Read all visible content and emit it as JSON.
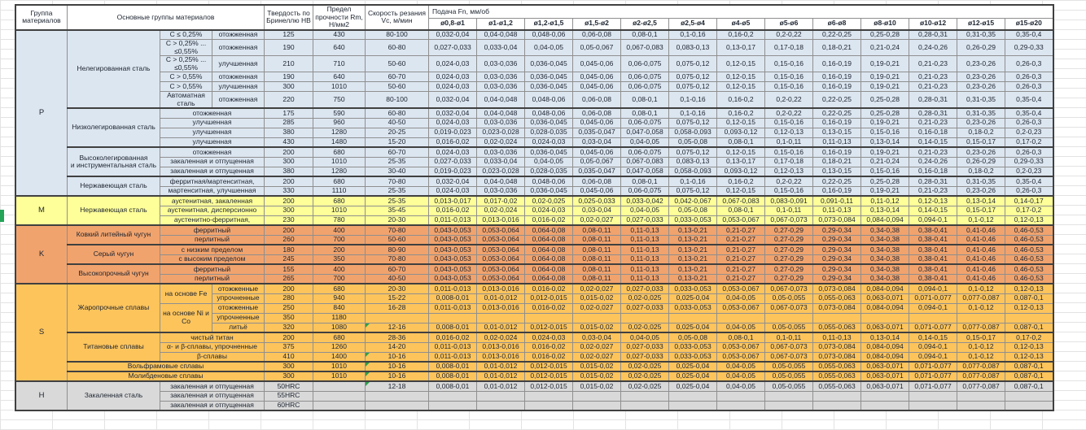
{
  "header": {
    "col_group": "Группа материалов",
    "col_materials": "Основные группы материалов",
    "col_hardness": "Твердость по Бринеллю НВ",
    "col_strength": "Предел прочности Rm, Н/мм2",
    "col_speed": "Скорость резания Vc, м/мин",
    "col_feed": "Подача Fn, мм/об",
    "feed_cols": [
      "ø0,8-ø1",
      "ø1-ø1,2",
      "ø1,2-ø1,5",
      "ø1,5-ø2",
      "ø2-ø2,5",
      "ø2,5-ø4",
      "ø4-ø5",
      "ø5-ø6",
      "ø6-ø8",
      "ø8-ø10",
      "ø10-ø12",
      "ø12-ø15",
      "ø15-ø20"
    ]
  },
  "colors": {
    "group_P": "#dce6f1",
    "group_M": "#ffff99",
    "group_K": "#f1a36d",
    "group_S": "#fdc45c",
    "group_H": "#d9d9d9",
    "flag_green": "#2e9e4f",
    "margin_marker_green": "#23a457"
  },
  "rows": [
    {
      "g": "P",
      "grp": "P",
      "grp_rows": 15,
      "mat": "Нелегированная сталь",
      "mat_rows": 6,
      "s1": "C ≤ 0,25%",
      "s2": "отожженная",
      "hb": "125",
      "rm": "430",
      "vc": "80-100",
      "f": [
        "0,032-0,04",
        "0,04-0,048",
        "0,048-0,06",
        "0,06-0,08",
        "0,08-0,1",
        "0,1-0,16",
        "0,16-0,2",
        "0,2-0,22",
        "0,22-0,25",
        "0,25-0,28",
        "0,28-0,31",
        "0,31-0,35",
        "0,35-0,4"
      ]
    },
    {
      "g": "P",
      "s1": "C > 0,25% ...\n≤0,55%",
      "s2": "отожженная",
      "hb": "190",
      "rm": "640",
      "vc": "60-80",
      "f": [
        "0,027-0,033",
        "0,033-0,04",
        "0,04-0,05",
        "0,05-0,067",
        "0,067-0,083",
        "0,083-0,13",
        "0,13-0,17",
        "0,17-0,18",
        "0,18-0,21",
        "0,21-0,24",
        "0,24-0,26",
        "0,26-0,29",
        "0,29-0,33"
      ]
    },
    {
      "g": "P",
      "s1": "C > 0,25% ...\n≤0,55%",
      "s2": "улучшенная",
      "hb": "210",
      "rm": "710",
      "vc": "50-60",
      "f": [
        "0,024-0,03",
        "0,03-0,036",
        "0,036-0,045",
        "0,045-0,06",
        "0,06-0,075",
        "0,075-0,12",
        "0,12-0,15",
        "0,15-0,16",
        "0,16-0,19",
        "0,19-0,21",
        "0,21-0,23",
        "0,23-0,26",
        "0,26-0,3"
      ]
    },
    {
      "g": "P",
      "s1": "C > 0,55%",
      "s2": "отожженная",
      "hb": "190",
      "rm": "640",
      "vc": "60-70",
      "f": [
        "0,024-0,03",
        "0,03-0,036",
        "0,036-0,045",
        "0,045-0,06",
        "0,06-0,075",
        "0,075-0,12",
        "0,12-0,15",
        "0,15-0,16",
        "0,16-0,19",
        "0,19-0,21",
        "0,21-0,23",
        "0,23-0,26",
        "0,26-0,3"
      ]
    },
    {
      "g": "P",
      "s1": "C > 0,55%",
      "s2": "улучшенная",
      "hb": "300",
      "rm": "1010",
      "vc": "50-60",
      "f": [
        "0,024-0,03",
        "0,03-0,036",
        "0,036-0,045",
        "0,045-0,06",
        "0,06-0,075",
        "0,075-0,12",
        "0,12-0,15",
        "0,15-0,16",
        "0,16-0,19",
        "0,19-0,21",
        "0,21-0,23",
        "0,23-0,26",
        "0,26-0,3"
      ]
    },
    {
      "g": "P",
      "s1": "Автоматная сталь",
      "s2": "отожженная",
      "hb": "220",
      "rm": "750",
      "vc": "80-100",
      "f": [
        "0,032-0,04",
        "0,04-0,048",
        "0,048-0,06",
        "0,06-0,08",
        "0,08-0,1",
        "0,1-0,16",
        "0,16-0,2",
        "0,2-0,22",
        "0,22-0,25",
        "0,25-0,28",
        "0,28-0,31",
        "0,31-0,35",
        "0,35-0,4"
      ]
    },
    {
      "g": "P",
      "mat": "Низколегированная сталь",
      "mat_rows": 4,
      "s1": "отожженная",
      "s1_cols": 2,
      "hb": "175",
      "rm": "590",
      "vc": "60-80",
      "f": [
        "0,032-0,04",
        "0,04-0,048",
        "0,048-0,06",
        "0,06-0,08",
        "0,08-0,1",
        "0,1-0,16",
        "0,16-0,2",
        "0,2-0,22",
        "0,22-0,25",
        "0,25-0,28",
        "0,28-0,31",
        "0,31-0,35",
        "0,35-0,4"
      ]
    },
    {
      "g": "P",
      "s1": "улучшенная",
      "s1_cols": 2,
      "hb": "285",
      "rm": "960",
      "vc": "40-50",
      "f": [
        "0,024-0,03",
        "0,03-0,036",
        "0,036-0,045",
        "0,045-0,06",
        "0,06-0,075",
        "0,075-0,12",
        "0,12-0,15",
        "0,15-0,16",
        "0,16-0,19",
        "0,19-0,21",
        "0,21-0,23",
        "0,23-0,26",
        "0,26-0,3"
      ]
    },
    {
      "g": "P",
      "s1": "улучшенная",
      "s1_cols": 2,
      "hb": "380",
      "rm": "1280",
      "vc": "20-25",
      "f": [
        "0,019-0,023",
        "0,023-0,028",
        "0,028-0,035",
        "0,035-0,047",
        "0,047-0,058",
        "0,058-0,093",
        "0,093-0,12",
        "0,12-0,13",
        "0,13-0,15",
        "0,15-0,16",
        "0,16-0,18",
        "0,18-0,2",
        "0,2-0,23"
      ]
    },
    {
      "g": "P",
      "s1": "улучшенная",
      "s1_cols": 2,
      "hb": "430",
      "rm": "1480",
      "vc": "15-20",
      "f": [
        "0,016-0,02",
        "0,02-0,024",
        "0,024-0,03",
        "0,03-0,04",
        "0,04-0,05",
        "0,05-0,08",
        "0,08-0,1",
        "0,1-0,11",
        "0,11-0,13",
        "0,13-0,14",
        "0,14-0,15",
        "0,15-0,17",
        "0,17-0,2"
      ]
    },
    {
      "g": "P",
      "mat": "Высоколегированная\nи инструментальная сталь",
      "mat_rows": 3,
      "s1": "отожженная",
      "s1_cols": 2,
      "hb": "200",
      "rm": "680",
      "vc": "60-70",
      "f": [
        "0,024-0,03",
        "0,03-0,036",
        "0,036-0,045",
        "0,045-0,06",
        "0,06-0,075",
        "0,075-0,12",
        "0,12-0,15",
        "0,15-0,16",
        "0,16-0,19",
        "0,19-0,21",
        "0,21-0,23",
        "0,23-0,26",
        "0,26-0,3"
      ]
    },
    {
      "g": "P",
      "s1": "закаленная и отпущенная",
      "s1_cols": 2,
      "hb": "300",
      "rm": "1010",
      "vc": "25-35",
      "f": [
        "0,027-0,033",
        "0,033-0,04",
        "0,04-0,05",
        "0,05-0,067",
        "0,067-0,083",
        "0,083-0,13",
        "0,13-0,17",
        "0,17-0,18",
        "0,18-0,21",
        "0,21-0,24",
        "0,24-0,26",
        "0,26-0,29",
        "0,29-0,33"
      ]
    },
    {
      "g": "P",
      "s1": "закаленная и отпущенная",
      "s1_cols": 2,
      "hb": "380",
      "rm": "1280",
      "vc": "30-40",
      "f": [
        "0,019-0,023",
        "0,023-0,028",
        "0,028-0,035",
        "0,035-0,047",
        "0,047-0,058",
        "0,058-0,093",
        "0,093-0,12",
        "0,12-0,13",
        "0,13-0,15",
        "0,15-0,16",
        "0,16-0,18",
        "0,18-0,2",
        "0,2-0,23"
      ]
    },
    {
      "g": "P",
      "mat": "Нержавеющая сталь",
      "mat_rows": 2,
      "s1": "ферритная/мартенситная,",
      "s1_cols": 2,
      "hb": "200",
      "rm": "680",
      "vc": "70-80",
      "f": [
        "0,032-0,04",
        "0,04-0,048",
        "0,048-0,06",
        "0,06-0,08",
        "0,08-0,1",
        "0,1-0,16",
        "0,16-0,2",
        "0,2-0,22",
        "0,22-0,25",
        "0,25-0,28",
        "0,28-0,31",
        "0,31-0,35",
        "0,35-0,4"
      ]
    },
    {
      "g": "P",
      "s1": "мартенситная, улучшенная",
      "s1_cols": 2,
      "hb": "330",
      "rm": "1110",
      "vc": "25-35",
      "f": [
        "0,024-0,03",
        "0,03-0,036",
        "0,036-0,045",
        "0,045-0,06",
        "0,06-0,075",
        "0,075-0,12",
        "0,12-0,15",
        "0,15-0,16",
        "0,16-0,19",
        "0,19-0,21",
        "0,21-0,23",
        "0,23-0,26",
        "0,26-0,3"
      ]
    },
    {
      "g": "M",
      "grp": "M",
      "grp_rows": 3,
      "mat": "Нержавеющая сталь",
      "mat_rows": 3,
      "s1": "аустенитная, закаленная",
      "s1_cols": 2,
      "hb": "200",
      "rm": "680",
      "vc": "25-35",
      "f": [
        "0,013-0,017",
        "0,017-0,02",
        "0,02-0,025",
        "0,025-0,033",
        "0,033-0,042",
        "0,042-0,067",
        "0,067-0,083",
        "0,083-0,091",
        "0,091-0,11",
        "0,11-0,12",
        "0,12-0,13",
        "0,13-0,14",
        "0,14-0,17"
      ]
    },
    {
      "g": "M",
      "s1": "аустенитная, дисперсионно",
      "s1_cols": 2,
      "hb": "300",
      "rm": "1010",
      "vc": "35-45",
      "f": [
        "0,016-0,02",
        "0,02-0,024",
        "0,024-0,03",
        "0,03-0,04",
        "0,04-0,05",
        "0,05-0,08",
        "0,08-0,1",
        "0,1-0,11",
        "0,11-0,13",
        "0,13-0,14",
        "0,14-0,15",
        "0,15-0,17",
        "0,17-0,2"
      ]
    },
    {
      "g": "M",
      "s1": "аустенитно-ферритная,",
      "s1_cols": 2,
      "hb": "230",
      "rm": "780",
      "vc": "20-30",
      "f": [
        "0,011-0,013",
        "0,013-0,016",
        "0,016-0,02",
        "0,02-0,027",
        "0,027-0,033",
        "0,033-0,053",
        "0,053-0,067",
        "0,067-0,073",
        "0,073-0,084",
        "0,084-0,094",
        "0,094-0,1",
        "0,1-0,12",
        "0,12-0,13"
      ]
    },
    {
      "g": "K",
      "grp": "K",
      "grp_rows": 6,
      "mat": "Ковкий литейный чугун",
      "mat_rows": 2,
      "s1": "ферритный",
      "s1_cols": 2,
      "hb": "200",
      "rm": "400",
      "vc": "70-80",
      "f": [
        "0,043-0,053",
        "0,053-0,064",
        "0,064-0,08",
        "0,08-0,11",
        "0,11-0,13",
        "0,13-0,21",
        "0,21-0,27",
        "0,27-0,29",
        "0,29-0,34",
        "0,34-0,38",
        "0,38-0,41",
        "0,41-0,46",
        "0,46-0,53"
      ]
    },
    {
      "g": "K",
      "s1": "перлитный",
      "s1_cols": 2,
      "hb": "260",
      "rm": "700",
      "vc": "50-60",
      "f": [
        "0,043-0,053",
        "0,053-0,064",
        "0,064-0,08",
        "0,08-0,11",
        "0,11-0,13",
        "0,13-0,21",
        "0,21-0,27",
        "0,27-0,29",
        "0,29-0,34",
        "0,34-0,38",
        "0,38-0,41",
        "0,41-0,46",
        "0,46-0,53"
      ]
    },
    {
      "g": "K",
      "mat": "Серый чугун",
      "mat_rows": 2,
      "s1": "с низким пределом",
      "s1_cols": 2,
      "hb": "180",
      "rm": "200",
      "vc": "80-90",
      "f": [
        "0,043-0,053",
        "0,053-0,064",
        "0,064-0,08",
        "0,08-0,11",
        "0,11-0,13",
        "0,13-0,21",
        "0,21-0,27",
        "0,27-0,29",
        "0,29-0,34",
        "0,34-0,38",
        "0,38-0,41",
        "0,41-0,46",
        "0,46-0,53"
      ]
    },
    {
      "g": "K",
      "s1": "с высоким пределом",
      "s1_cols": 2,
      "hb": "245",
      "rm": "350",
      "vc": "70-80",
      "f": [
        "0,043-0,053",
        "0,053-0,064",
        "0,064-0,08",
        "0,08-0,11",
        "0,11-0,13",
        "0,13-0,21",
        "0,21-0,27",
        "0,27-0,29",
        "0,29-0,34",
        "0,34-0,38",
        "0,38-0,41",
        "0,41-0,46",
        "0,46-0,53"
      ]
    },
    {
      "g": "K",
      "mat": "Высокопрочный чугун",
      "mat_rows": 2,
      "s1": "ферритный",
      "s1_cols": 2,
      "hb": "155",
      "rm": "400",
      "vc": "60-70",
      "f": [
        "0,043-0,053",
        "0,053-0,064",
        "0,064-0,08",
        "0,08-0,11",
        "0,11-0,13",
        "0,13-0,21",
        "0,21-0,27",
        "0,27-0,29",
        "0,29-0,34",
        "0,34-0,38",
        "0,38-0,41",
        "0,41-0,46",
        "0,46-0,53"
      ]
    },
    {
      "g": "K",
      "s1": "перлитный",
      "s1_cols": 2,
      "hb": "265",
      "rm": "700",
      "vc": "40-50",
      "f": [
        "0,043-0,053",
        "0,053-0,064",
        "0,064-0,08",
        "0,08-0,11",
        "0,11-0,13",
        "0,13-0,21",
        "0,21-0,27",
        "0,27-0,29",
        "0,29-0,34",
        "0,34-0,38",
        "0,38-0,41",
        "0,41-0,46",
        "0,46-0,53"
      ]
    },
    {
      "g": "S",
      "grp": "S",
      "grp_rows": 10,
      "mat": "Жаропрочные сплавы",
      "mat_rows": 5,
      "s1": "на основе Fe",
      "s1_rows": 2,
      "s2": "отожженные",
      "hb": "200",
      "rm": "680",
      "vc": "20-30",
      "f": [
        "0,011-0,013",
        "0,013-0,016",
        "0,016-0,02",
        "0,02-0,027",
        "0,027-0,033",
        "0,033-0,053",
        "0,053-0,067",
        "0,067-0,073",
        "0,073-0,084",
        "0,084-0,094",
        "0,094-0,1",
        "0,1-0,12",
        "0,12-0,13"
      ]
    },
    {
      "g": "S",
      "s2": "упрочненные",
      "hb": "280",
      "rm": "940",
      "vc": "15-22",
      "f": [
        "0,008-0,01",
        "0,01-0,012",
        "0,012-0,015",
        "0,015-0,02",
        "0,02-0,025",
        "0,025-0,04",
        "0,04-0,05",
        "0,05-0,055",
        "0,055-0,063",
        "0,063-0,071",
        "0,071-0,077",
        "0,077-0,087",
        "0,087-0,1"
      ]
    },
    {
      "g": "S",
      "s1": "на основе Ni и Co",
      "s1_rows": 3,
      "s2": "отожженные",
      "hb": "250",
      "rm": "840",
      "vc": "16-28",
      "f": [
        "0,011-0,013",
        "0,013-0,016",
        "0,016-0,02",
        "0,02-0,027",
        "0,027-0,033",
        "0,033-0,053",
        "0,053-0,067",
        "0,067-0,073",
        "0,073-0,084",
        "0,084-0,094",
        "0,094-0,1",
        "0,1-0,12",
        "0,12-0,13"
      ]
    },
    {
      "g": "S",
      "s2": "упрочненные",
      "hb": "350",
      "rm": "1180",
      "vc": "",
      "f": [
        "",
        "",
        "",
        "",
        "",
        "",
        "",
        "",
        "",
        "",
        "",
        "",
        ""
      ]
    },
    {
      "g": "S",
      "s2": "литьё",
      "hb": "320",
      "rm": "1080",
      "vc": "12-16",
      "flag": true,
      "f": [
        "0,008-0,01",
        "0,01-0,012",
        "0,012-0,015",
        "0,015-0,02",
        "0,02-0,025",
        "0,025-0,04",
        "0,04-0,05",
        "0,05-0,055",
        "0,055-0,063",
        "0,063-0,071",
        "0,071-0,077",
        "0,077-0,087",
        "0,087-0,1"
      ]
    },
    {
      "g": "S",
      "mat": "Титановые сплавы",
      "mat_rows": 3,
      "s1": "чистый титан",
      "s1_cols": 2,
      "hb": "200",
      "rm": "680",
      "vc": "28-36",
      "f": [
        "0,016-0,02",
        "0,02-0,024",
        "0,024-0,03",
        "0,03-0,04",
        "0,04-0,05",
        "0,05-0,08",
        "0,08-0,1",
        "0,1-0,11",
        "0,11-0,13",
        "0,13-0,14",
        "0,14-0,15",
        "0,15-0,17",
        "0,17-0,2"
      ]
    },
    {
      "g": "S",
      "s1": "α- и β-сплавы, упрочненные",
      "s1_cols": 2,
      "hb": "375",
      "rm": "1260",
      "vc": "14-20",
      "f": [
        "0,011-0,013",
        "0,013-0,016",
        "0,016-0,02",
        "0,02-0,027",
        "0,027-0,033",
        "0,033-0,053",
        "0,053-0,067",
        "0,067-0,073",
        "0,073-0,084",
        "0,084-0,094",
        "0,094-0,1",
        "0,1-0,12",
        "0,12-0,13"
      ]
    },
    {
      "g": "S",
      "s1": "β-сплавы",
      "s1_cols": 2,
      "hb": "410",
      "rm": "1400",
      "vc": "10-16",
      "flag": true,
      "f": [
        "0,011-0,013",
        "0,013-0,016",
        "0,016-0,02",
        "0,02-0,027",
        "0,027-0,033",
        "0,033-0,053",
        "0,053-0,067",
        "0,067-0,073",
        "0,073-0,084",
        "0,084-0,094",
        "0,094-0,1",
        "0,1-0,12",
        "0,12-0,13"
      ]
    },
    {
      "g": "S",
      "mat": "Вольфрамовые сплавы",
      "mat_cols": 3,
      "hb": "300",
      "rm": "1010",
      "vc": "10-16",
      "flag": true,
      "f": [
        "0,008-0,01",
        "0,01-0,012",
        "0,012-0,015",
        "0,015-0,02",
        "0,02-0,025",
        "0,025-0,04",
        "0,04-0,05",
        "0,05-0,055",
        "0,055-0,063",
        "0,063-0,071",
        "0,071-0,077",
        "0,077-0,087",
        "0,087-0,1"
      ]
    },
    {
      "g": "S",
      "mat": "Молибденовые сплавы",
      "mat_cols": 3,
      "hb": "300",
      "rm": "1010",
      "vc": "10-16",
      "flag": true,
      "f": [
        "0,008-0,01",
        "0,01-0,012",
        "0,012-0,015",
        "0,015-0,02",
        "0,02-0,025",
        "0,025-0,04",
        "0,04-0,05",
        "0,05-0,055",
        "0,055-0,063",
        "0,063-0,071",
        "0,071-0,077",
        "0,077-0,087",
        "0,087-0,1"
      ]
    },
    {
      "g": "H",
      "grp": "H",
      "grp_rows": 3,
      "mat": "Закаленная сталь",
      "mat_rows": 3,
      "s1": "закаленная и отпущенная",
      "s1_cols": 2,
      "hb": "50HRC",
      "rm": "",
      "vc": "12-18",
      "flag": true,
      "f": [
        "0,008-0,01",
        "0,01-0,012",
        "0,012-0,015",
        "0,015-0,02",
        "0,02-0,025",
        "0,025-0,04",
        "0,04-0,05",
        "0,05-0,055",
        "0,055-0,063",
        "0,063-0,071",
        "0,071-0,077",
        "0,077-0,087",
        "0,087-0,1"
      ]
    },
    {
      "g": "H",
      "s1": "закаленная и отпущенная",
      "s1_cols": 2,
      "hb": "55HRC",
      "rm": "",
      "vc": "",
      "f": [
        "",
        "",
        "",
        "",
        "",
        "",
        "",
        "",
        "",
        "",
        "",
        "",
        ""
      ]
    },
    {
      "g": "H",
      "s1": "закаленная и отпущенная",
      "s1_cols": 2,
      "hb": "60HRC",
      "rm": "",
      "vc": "",
      "f": [
        "",
        "",
        "",
        "",
        "",
        "",
        "",
        "",
        "",
        "",
        "",
        "",
        ""
      ]
    }
  ]
}
